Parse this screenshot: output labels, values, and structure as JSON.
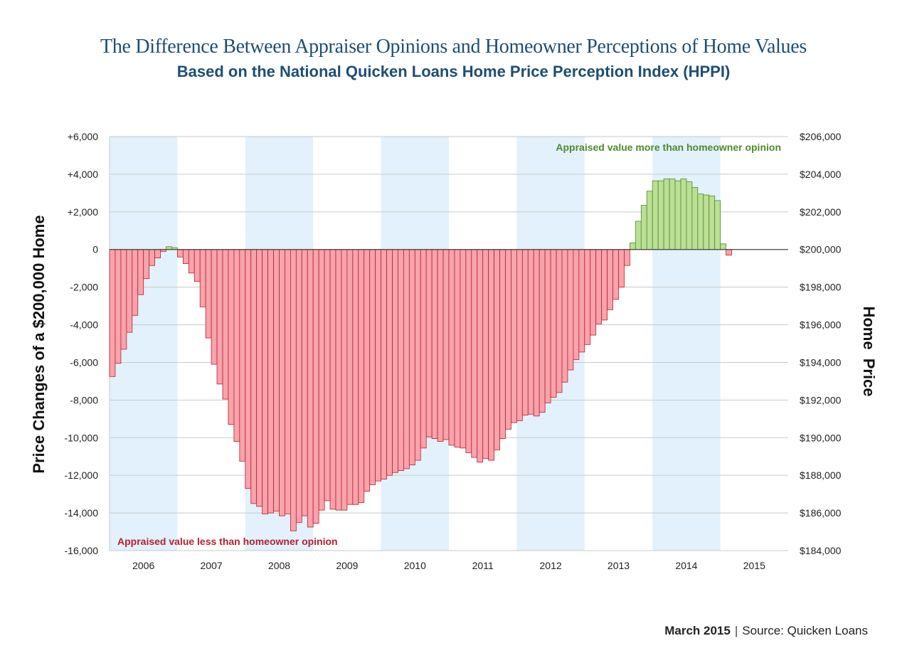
{
  "header": {
    "title": "The Difference Between Appraiser Opinions and Homeowner Perceptions of Home Values",
    "subtitle_main": "Based on the National Quicken Loans Home Price Perception Index",
    "subtitle_bold": "(HPPI)"
  },
  "footer": {
    "date": "March 2015",
    "separator": "|",
    "source": "Source: Quicken Loans"
  },
  "chart_data": {
    "type": "bar",
    "title": "The Difference Between Appraiser Opinions and Homeowner Perceptions of Home Values",
    "subtitle": "Based on the National Quicken Loans Home Price Perception Index (HPPI)",
    "ylabel_left": "Price Changes of a $200,000 Home",
    "ylabel_right": "Home Price",
    "ylim": [
      -16000,
      6000
    ],
    "ylim_right": [
      184000,
      206000
    ],
    "y_ticks_left": [
      "+6,000",
      "+4,000",
      "+2,000",
      "0",
      "-2,000",
      "-4,000",
      "-6,000",
      "-8,000",
      "-10,000",
      "-12,000",
      "-14,000",
      "-16,000"
    ],
    "y_ticks_right": [
      "$206,000",
      "$204,000",
      "$202,000",
      "$200,000",
      "$198,000",
      "$196,000",
      "$194,000",
      "$192,000",
      "$190,000",
      "$188,000",
      "$186,000",
      "$184,000"
    ],
    "years": [
      "2006",
      "2007",
      "2008",
      "2009",
      "2010",
      "2011",
      "2012",
      "2013",
      "2014",
      "2015"
    ],
    "shaded_years": [
      "2006",
      "2008",
      "2010",
      "2012",
      "2014"
    ],
    "grid": true,
    "colors": {
      "negative_fill": "#f9a3ab",
      "negative_stroke": "#b5202f",
      "positive_fill": "#bcdf96",
      "positive_stroke": "#4f8a2a",
      "band": "#e2f1fb",
      "grid": "#c9c9c9",
      "zero_line": "#444444"
    },
    "annotations": {
      "above": "Appraised value more than homeowner opinion",
      "below": "Appraised value less than homeowner opinion",
      "above_color": "#4f8a2a",
      "below_color": "#b5202f"
    },
    "series": [
      {
        "start": "2006-01",
        "frequency": "monthly",
        "values": [
          -6750,
          -6050,
          -5300,
          -4400,
          -3500,
          -2400,
          -1550,
          -850,
          -450,
          -100,
          150,
          100,
          -400,
          -750,
          -1250,
          -1700,
          -3050,
          -4700,
          -6100,
          -7150,
          -7950,
          -9300,
          -10200,
          -11250,
          -12700,
          -13500,
          -13650,
          -14050,
          -14000,
          -13900,
          -14150,
          -14050,
          -14950,
          -14500,
          -14150,
          -14750,
          -14550,
          -13850,
          -13350,
          -13800,
          -13850,
          -13850,
          -13550,
          -13550,
          -13450,
          -12850,
          -12500,
          -12300,
          -12200,
          -12000,
          -11850,
          -11750,
          -11650,
          -11450,
          -11200,
          -10550,
          -9950,
          -10050,
          -10200,
          -10100,
          -10400,
          -10500,
          -10550,
          -10800,
          -11050,
          -11300,
          -11100,
          -11200,
          -10650,
          -10050,
          -9550,
          -9200,
          -9100,
          -8800,
          -8750,
          -8850,
          -8650,
          -8150,
          -7850,
          -7600,
          -7050,
          -6400,
          -5850,
          -5450,
          -5050,
          -4550,
          -3950,
          -3750,
          -3200,
          -2650,
          -2000,
          -850,
          350,
          1500,
          2350,
          3100,
          3650,
          3650,
          3750,
          3750,
          3650,
          3750,
          3600,
          3300,
          2950,
          2900,
          2850,
          2600,
          300,
          -300
        ]
      }
    ]
  }
}
